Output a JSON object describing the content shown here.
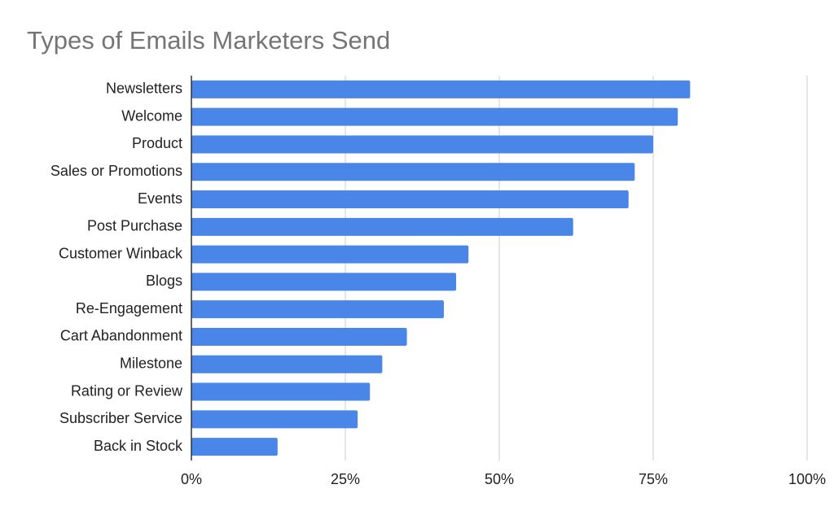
{
  "chart_data": {
    "type": "hbar",
    "title": "Types of Emails Marketers Send",
    "categories": [
      "Newsletters",
      "Welcome",
      "Product",
      "Sales or Promotions",
      "Events",
      "Post Purchase",
      "Customer Winback",
      "Blogs",
      "Re-Engagement",
      "Cart Abandonment",
      "Milestone",
      "Rating or Review",
      "Subscriber Service",
      "Back in Stock"
    ],
    "values": [
      81,
      79,
      75,
      72,
      71,
      62,
      45,
      43,
      41,
      35,
      31,
      29,
      27,
      14
    ],
    "color": "#4a86e8",
    "xlim": [
      0,
      100
    ],
    "xticks": [
      {
        "value": 0,
        "label": "0%"
      },
      {
        "value": 25,
        "label": "25%"
      },
      {
        "value": 50,
        "label": "50%"
      },
      {
        "value": 75,
        "label": "75%"
      },
      {
        "value": 100,
        "label": "100%"
      }
    ],
    "grid": true
  }
}
